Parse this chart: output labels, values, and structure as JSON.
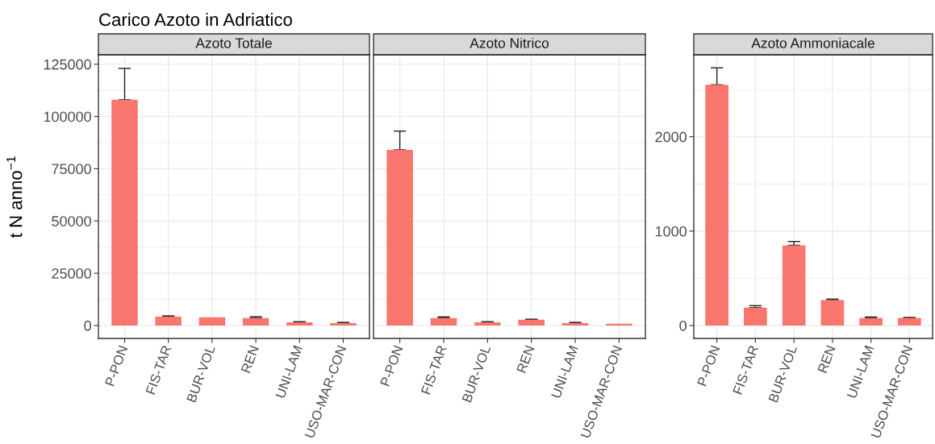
{
  "chart_data": [
    {
      "type": "bar",
      "title": "Carico Azoto in Adriatico",
      "subtitle": "Azoto Totale",
      "ylabel": "t N anno$^{−1}$",
      "categories": [
        "P-PON",
        "FIS-TAR",
        "BUR-VOL",
        "REN",
        "UNI-LAM",
        "USO-MAR-CON"
      ],
      "values": [
        108000,
        4200,
        3900,
        3500,
        1500,
        1100
      ],
      "errors": [
        [
          108000,
          123000
        ],
        [
          4200,
          4600
        ],
        null,
        [
          3500,
          4200
        ],
        [
          1500,
          1800
        ],
        [
          1100,
          1500
        ]
      ],
      "color": "#f8766d",
      "ylim": [
        -6200,
        129500
      ],
      "yticks": [
        0,
        25000,
        50000,
        75000,
        100000,
        125000
      ],
      "grid": true
    },
    {
      "type": "bar",
      "subtitle": "Azoto Nitrico",
      "categories": [
        "P-PON",
        "FIS-TAR",
        "BUR-VOL",
        "REN",
        "UNI-LAM",
        "USO-MAR-CON"
      ],
      "values": [
        84000,
        3500,
        1500,
        2800,
        1100,
        800
      ],
      "errors": [
        [
          84000,
          93000
        ],
        [
          3500,
          4100
        ],
        [
          1500,
          1800
        ],
        [
          2800,
          3000
        ],
        [
          1100,
          1500
        ],
        null
      ],
      "color": "#f8766d",
      "ylim": [
        -6200,
        129500
      ],
      "yticks": [
        0,
        25000,
        50000,
        75000,
        100000,
        125000
      ],
      "grid": true,
      "tick_labels": "x"
    },
    {
      "type": "bar",
      "subtitle": "Azoto Ammoniacale",
      "categories": [
        "P-PON",
        "FIS-TAR",
        "BUR-VOL",
        "REN",
        "UNI-LAM",
        "USO-MAR-CON"
      ],
      "values": [
        2550,
        190,
        850,
        270,
        80,
        80
      ],
      "errors": [
        [
          2550,
          2730
        ],
        [
          190,
          210
        ],
        [
          850,
          890
        ],
        [
          270,
          280
        ],
        [
          80,
          90
        ],
        [
          80,
          85
        ]
      ],
      "color": "#f8766d",
      "ylim": [
        -137,
        2868
      ],
      "yticks": [
        0,
        1000,
        2000
      ],
      "grid": true
    }
  ]
}
